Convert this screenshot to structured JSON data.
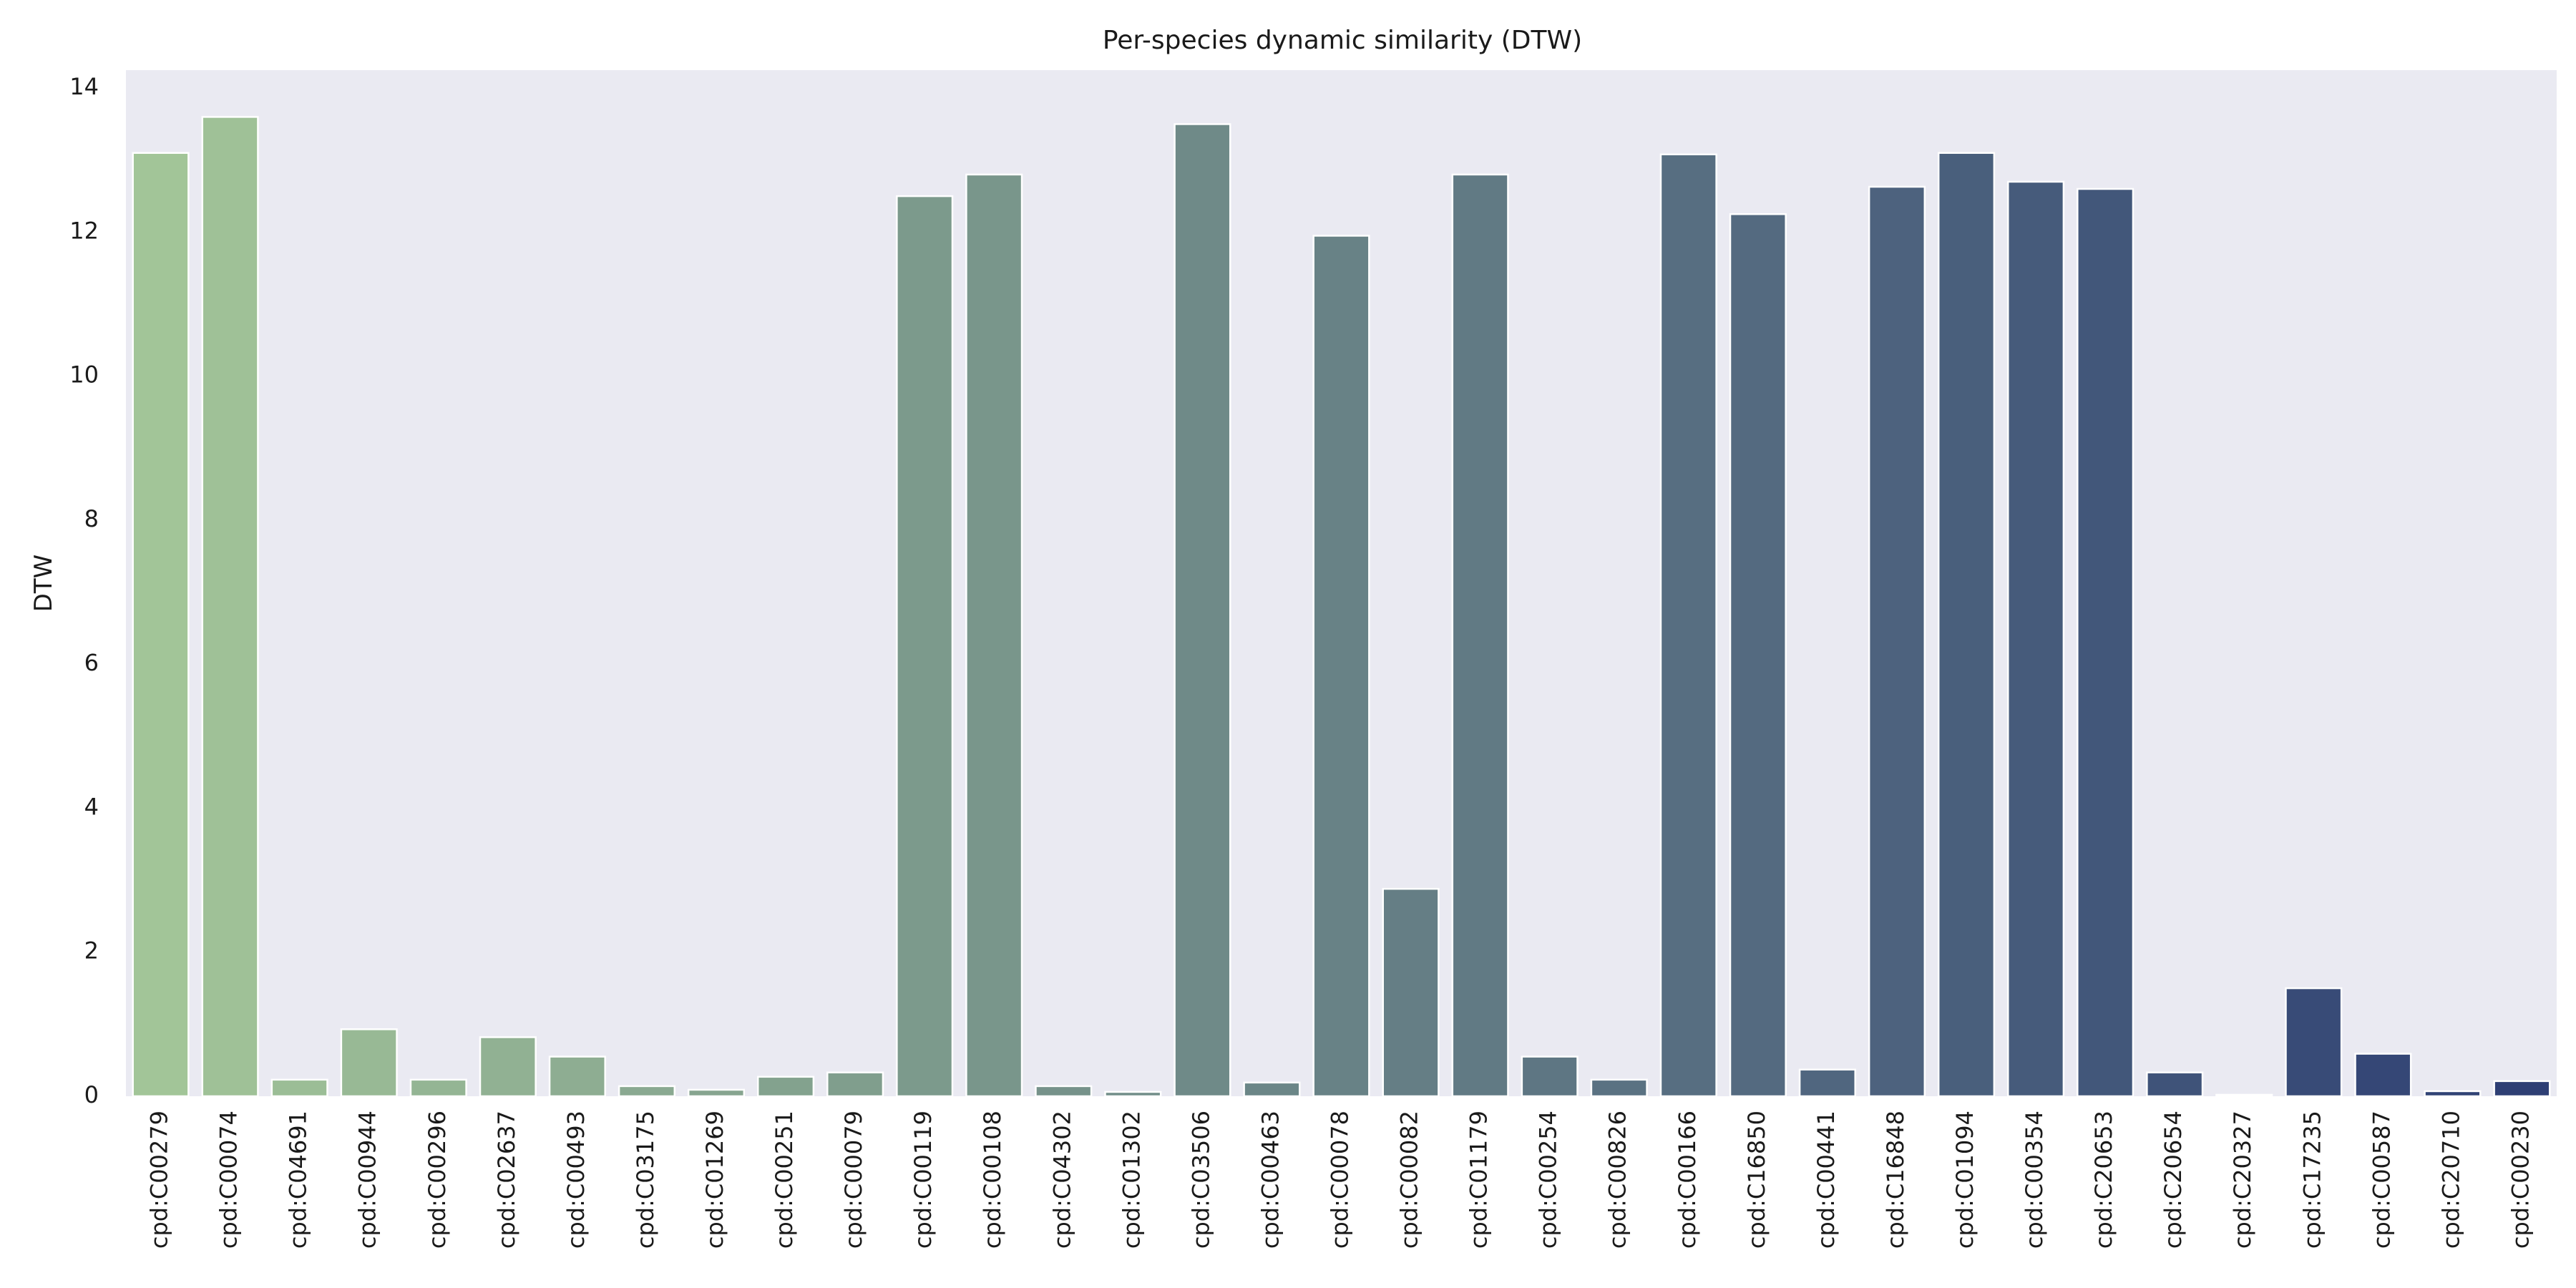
{
  "chart_data": {
    "type": "bar",
    "title": "Per-species dynamic similarity (DTW)",
    "xlabel": "",
    "ylabel": "DTW",
    "ylim": [
      0,
      14.25
    ],
    "yticks": [
      0,
      2,
      4,
      6,
      8,
      10,
      12,
      14
    ],
    "grid": false,
    "legend": "none",
    "palette": "crest",
    "color_start": "#a2c598",
    "color_end": "#2e3f74",
    "background": "#eaeaf2",
    "categories": [
      "cpd:C00279",
      "cpd:C00074",
      "cpd:C04691",
      "cpd:C00944",
      "cpd:C00296",
      "cpd:C02637",
      "cpd:C00493",
      "cpd:C03175",
      "cpd:C01269",
      "cpd:C00251",
      "cpd:C00079",
      "cpd:C00119",
      "cpd:C00108",
      "cpd:C04302",
      "cpd:C01302",
      "cpd:C03506",
      "cpd:C00463",
      "cpd:C00078",
      "cpd:C00082",
      "cpd:C01179",
      "cpd:C00254",
      "cpd:C00826",
      "cpd:C00166",
      "cpd:C16850",
      "cpd:C00441",
      "cpd:C16848",
      "cpd:C01094",
      "cpd:C00354",
      "cpd:C20653",
      "cpd:C20654",
      "cpd:C20327",
      "cpd:C17235",
      "cpd:C00587",
      "cpd:C20710",
      "cpd:C00230"
    ],
    "values": [
      13.1,
      13.6,
      0.23,
      0.93,
      0.23,
      0.82,
      0.55,
      0.14,
      0.09,
      0.27,
      0.33,
      12.5,
      12.8,
      0.14,
      0.06,
      13.5,
      0.19,
      11.95,
      2.88,
      12.8,
      0.55,
      0.23,
      13.08,
      12.25,
      0.37,
      12.63,
      13.1,
      12.7,
      12.6,
      0.33,
      0.02,
      1.5,
      0.59,
      0.07,
      0.21
    ]
  }
}
